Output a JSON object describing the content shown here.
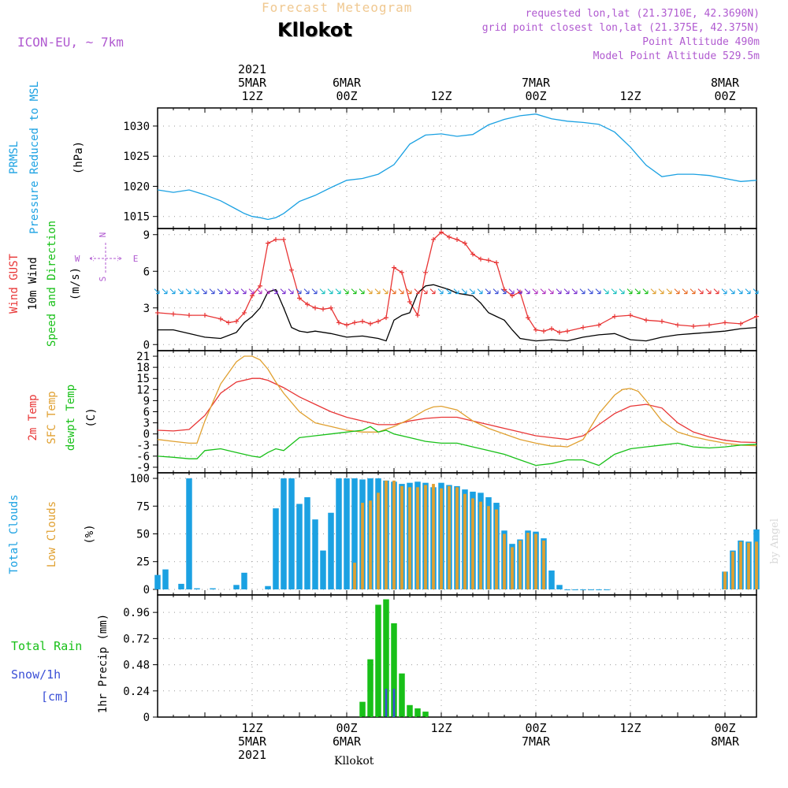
{
  "header": {
    "title": "Forecast Meteogram",
    "station": "Kllokot",
    "model": "ICON-EU, ~ 7km",
    "requested": "requested lon,lat (21.3710E, 42.3690N)",
    "grid_point": "grid point closest lon,lat (21.375E, 42.375N)",
    "point_altitude": "Point Altitude 490m",
    "model_altitude": "Model Point Altitude 529.5m",
    "footer": "Kllokot",
    "signature": "by Angel"
  },
  "time_axis": {
    "top_labels": [
      {
        "t": 12,
        "lines": [
          "2021",
          "5MAR",
          "12Z"
        ]
      },
      {
        "t": 24,
        "lines": [
          "6MAR",
          "00Z"
        ]
      },
      {
        "t": 36,
        "lines": [
          "12Z"
        ]
      },
      {
        "t": 48,
        "lines": [
          "7MAR",
          "00Z"
        ]
      },
      {
        "t": 60,
        "lines": [
          "12Z"
        ]
      },
      {
        "t": 72,
        "lines": [
          "8MAR",
          "00Z"
        ]
      }
    ],
    "bottom_labels": [
      {
        "t": 12,
        "lines": [
          "12Z",
          "5MAR",
          "2021"
        ]
      },
      {
        "t": 24,
        "lines": [
          "00Z",
          "6MAR"
        ]
      },
      {
        "t": 36,
        "lines": [
          "12Z"
        ]
      },
      {
        "t": 48,
        "lines": [
          "00Z",
          "7MAR"
        ]
      },
      {
        "t": 60,
        "lines": [
          "12Z"
        ]
      },
      {
        "t": 72,
        "lines": [
          "00Z",
          "8MAR"
        ]
      }
    ]
  },
  "panel_labels": {
    "pressure": [
      {
        "text": "PRMSL",
        "color": "#1ba1e2"
      },
      {
        "text": "Pressure Reduced to MSL",
        "color": "#1ba1e2"
      },
      {
        "text": "(hPa)",
        "color": "#000000"
      }
    ],
    "wind": [
      {
        "text": "Wind GUST",
        "color": "#e83535"
      },
      {
        "text": "10m Wind",
        "color": "#000000"
      },
      {
        "text": "Speed and Direction",
        "color": "#18c018"
      },
      {
        "text": "(m/s)",
        "color": "#000000"
      }
    ],
    "compass": {
      "north": "N",
      "south": "S",
      "west": "W",
      "east": "E",
      "color": "#b05ad0"
    },
    "temp": [
      {
        "text": "2m Temp",
        "color": "#e83535"
      },
      {
        "text": "SFC Temp",
        "color": "#e0a030"
      },
      {
        "text": "dewpt Temp",
        "color": "#18c018"
      },
      {
        "text": "(C)",
        "color": "#000000"
      }
    ],
    "clouds": [
      {
        "text": "Total Clouds",
        "color": "#1ba1e2"
      },
      {
        "text": "Low Clouds",
        "color": "#e0a030"
      },
      {
        "text": "(%)",
        "color": "#000000"
      }
    ],
    "precip_left": [
      {
        "text": "Total  Rain",
        "color": "#18c018"
      },
      {
        "text": "Snow/1h",
        "color": "#3a4fd6"
      },
      {
        "text": "[cm]",
        "color": "#3a4fd6"
      }
    ],
    "precip_axis": "1hr Precip (mm)"
  },
  "chart_data": [
    {
      "type": "line",
      "name": "pressure",
      "x_unit": "hours from 5MAR 00Z",
      "ylim": [
        1013,
        1033
      ],
      "yticks": [
        1015,
        1020,
        1025,
        1030
      ],
      "series": [
        {
          "name": "PRMSL",
          "color": "#1ba1e2",
          "x": [
            0,
            2,
            4,
            6,
            8,
            10,
            11,
            12,
            13,
            14,
            15,
            16,
            18,
            20,
            22,
            24,
            26,
            28,
            30,
            32,
            34,
            36,
            38,
            40,
            42,
            44,
            46,
            48,
            50,
            52,
            54,
            56,
            58,
            60,
            62,
            64,
            66,
            68,
            70,
            72,
            74,
            76
          ],
          "y": [
            1019.4,
            1019,
            1019.4,
            1018.6,
            1017.6,
            1016.2,
            1015.5,
            1015,
            1014.8,
            1014.5,
            1014.8,
            1015.5,
            1017.5,
            1018.5,
            1019.8,
            1021,
            1021.3,
            1022,
            1023.6,
            1027,
            1028.5,
            1028.7,
            1028.3,
            1028.6,
            1030.2,
            1031.1,
            1031.7,
            1032,
            1031.2,
            1030.8,
            1030.6,
            1030.3,
            1029,
            1026.5,
            1023.5,
            1021.6,
            1022,
            1022,
            1021.8,
            1021.3,
            1020.8,
            1021
          ]
        }
      ]
    },
    {
      "type": "line",
      "name": "wind",
      "x_unit": "hours from 5MAR 00Z",
      "ylim": [
        -0.5,
        9.5
      ],
      "yticks": [
        0,
        3,
        6,
        9
      ],
      "series": [
        {
          "name": "Wind GUST",
          "color": "#e83535",
          "x": [
            0,
            2,
            4,
            6,
            8,
            9,
            10,
            11,
            12,
            13,
            14,
            15,
            16,
            17,
            18,
            19,
            20,
            21,
            22,
            23,
            24,
            25,
            26,
            27,
            28,
            29,
            30,
            31,
            32,
            33,
            34,
            35,
            36,
            37,
            38,
            39,
            40,
            41,
            42,
            43,
            44,
            45,
            46,
            47,
            48,
            49,
            50,
            51,
            52,
            54,
            56,
            58,
            60,
            62,
            64,
            66,
            68,
            70,
            72,
            74,
            76
          ],
          "y": [
            2.6,
            2.5,
            2.4,
            2.4,
            2.1,
            1.8,
            1.9,
            2.6,
            4.0,
            4.8,
            8.3,
            8.6,
            8.6,
            6.1,
            3.8,
            3.3,
            3.0,
            2.9,
            3.0,
            1.8,
            1.6,
            1.8,
            1.9,
            1.7,
            1.9,
            2.2,
            6.3,
            5.9,
            3.5,
            2.4,
            5.9,
            8.6,
            9.2,
            8.8,
            8.6,
            8.3,
            7.4,
            7.0,
            6.9,
            6.7,
            4.5,
            4.0,
            4.3,
            2.2,
            1.2,
            1.1,
            1.3,
            1.0,
            1.1,
            1.4,
            1.6,
            2.3,
            2.4,
            2.0,
            1.9,
            1.6,
            1.5,
            1.6,
            1.8,
            1.7,
            2.3
          ]
        },
        {
          "name": "10m Wind",
          "color": "#000000",
          "x": [
            0,
            2,
            4,
            6,
            8,
            10,
            11,
            12,
            13,
            14,
            15,
            16,
            17,
            18,
            19,
            20,
            22,
            24,
            26,
            28,
            29,
            30,
            31,
            32,
            33,
            34,
            35,
            36,
            37,
            38,
            39,
            40,
            41,
            42,
            43,
            44,
            45,
            46,
            47,
            48,
            50,
            52,
            54,
            56,
            58,
            60,
            62,
            64,
            66,
            68,
            70,
            72,
            74,
            76
          ],
          "y": [
            1.2,
            1.2,
            0.9,
            0.6,
            0.5,
            1.0,
            1.8,
            2.3,
            3.0,
            4.3,
            4.5,
            3.0,
            1.4,
            1.1,
            1.0,
            1.1,
            0.9,
            0.6,
            0.7,
            0.5,
            0.3,
            2.0,
            2.4,
            2.6,
            4.2,
            4.8,
            4.9,
            4.7,
            4.5,
            4.2,
            4.1,
            4.0,
            3.4,
            2.6,
            2.3,
            2.0,
            1.2,
            0.5,
            0.4,
            0.3,
            0.4,
            0.3,
            0.6,
            0.8,
            0.9,
            0.4,
            0.3,
            0.6,
            0.8,
            0.9,
            1.0,
            1.1,
            1.3,
            1.4
          ]
        }
      ],
      "direction_arrows_row": "wind barbs drawn as colored arrows along y=4.3"
    },
    {
      "type": "line",
      "name": "temperature",
      "x_unit": "hours from 5MAR 00Z",
      "ylim": [
        -10.5,
        22.5
      ],
      "yticks": [
        -9,
        -6,
        -3,
        0,
        3,
        6,
        9,
        12,
        15,
        18,
        21
      ],
      "series": [
        {
          "name": "2m Temp",
          "color": "#e83535",
          "x": [
            0,
            2,
            4,
            6,
            8,
            10,
            12,
            13,
            14,
            16,
            18,
            20,
            22,
            24,
            26,
            28,
            30,
            32,
            34,
            36,
            38,
            40,
            42,
            44,
            46,
            48,
            50,
            52,
            54,
            56,
            58,
            60,
            62,
            64,
            66,
            68,
            70,
            72,
            74,
            76
          ],
          "y": [
            1,
            0.8,
            1.2,
            5,
            11,
            14,
            15,
            15,
            14.5,
            12.5,
            10,
            8,
            6,
            4.5,
            3.5,
            2.5,
            2.5,
            3.5,
            4.2,
            4.5,
            4.5,
            3.5,
            2.5,
            1.5,
            0.5,
            -0.5,
            -1,
            -1.5,
            -0.5,
            2.5,
            5.5,
            7.5,
            8,
            7,
            3,
            0.5,
            -0.8,
            -1.7,
            -2.2,
            -2.3
          ]
        },
        {
          "name": "SFC Temp",
          "color": "#e0a030",
          "x": [
            0,
            2,
            4,
            5,
            6,
            8,
            10,
            11,
            12,
            13,
            14,
            15,
            16,
            18,
            20,
            22,
            24,
            26,
            28,
            30,
            32,
            34,
            35,
            36,
            38,
            40,
            42,
            44,
            46,
            48,
            50,
            51,
            52,
            54,
            56,
            58,
            59,
            60,
            61,
            62,
            64,
            66,
            68,
            70,
            72,
            74,
            76
          ],
          "y": [
            -1.5,
            -2,
            -2.5,
            -2.5,
            3.5,
            13.5,
            19.5,
            21,
            21,
            20,
            17.5,
            14,
            11,
            6,
            3,
            2,
            1,
            0.5,
            0.5,
            2,
            4,
            6.5,
            7.3,
            7.5,
            6.5,
            3.5,
            1.5,
            0,
            -1.5,
            -2.5,
            -3.3,
            -3.3,
            -3.5,
            -1.5,
            5.5,
            10.5,
            12,
            12.3,
            11.5,
            9,
            3.5,
            0.5,
            -0.8,
            -1.7,
            -2.5,
            -3,
            -3.2
          ]
        },
        {
          "name": "dewpt Temp",
          "color": "#18c018",
          "x": [
            0,
            2,
            4,
            5,
            6,
            8,
            10,
            12,
            13,
            14,
            15,
            16,
            18,
            20,
            22,
            24,
            26,
            27,
            28,
            29,
            30,
            32,
            34,
            36,
            38,
            40,
            42,
            44,
            46,
            48,
            50,
            52,
            54,
            56,
            58,
            60,
            62,
            64,
            66,
            68,
            70,
            72,
            74,
            76
          ],
          "y": [
            -6,
            -6.3,
            -6.7,
            -6.7,
            -4.5,
            -4,
            -5,
            -6,
            -6.3,
            -5,
            -4,
            -4.5,
            -1,
            -0.5,
            0,
            0.5,
            1,
            2,
            0.5,
            1,
            0,
            -1,
            -2,
            -2.5,
            -2.5,
            -3.5,
            -4.5,
            -5.5,
            -7,
            -8.5,
            -8,
            -7,
            -7,
            -8.5,
            -5.5,
            -4,
            -3.5,
            -3,
            -2.5,
            -3.5,
            -3.8,
            -3.5,
            -3,
            -2.8
          ]
        }
      ]
    },
    {
      "type": "bar",
      "name": "clouds",
      "x_unit": "hours from 5MAR 00Z",
      "ylim": [
        -5,
        105
      ],
      "yticks": [
        0,
        25,
        50,
        75,
        100
      ],
      "series": [
        {
          "name": "Total Clouds",
          "color": "#1ba1e2",
          "x": [
            0,
            1,
            3,
            4,
            5,
            7,
            10,
            11,
            14,
            15,
            16,
            17,
            18,
            19,
            20,
            21,
            22,
            23,
            24,
            25,
            26,
            27,
            28,
            29,
            30,
            31,
            32,
            33,
            34,
            35,
            36,
            37,
            38,
            39,
            40,
            41,
            42,
            43,
            44,
            45,
            46,
            47,
            48,
            49,
            50,
            51,
            52,
            53,
            54,
            55,
            56,
            57,
            72,
            73,
            74,
            75,
            76
          ],
          "y": [
            13,
            18,
            5,
            100,
            1,
            1,
            4,
            15,
            3,
            73,
            100,
            100,
            77,
            83,
            63,
            35,
            69,
            100,
            100,
            100,
            99,
            100,
            100,
            98,
            97,
            95,
            96,
            97,
            96,
            92,
            96,
            94,
            93,
            90,
            88,
            87,
            83,
            78,
            53,
            41,
            45,
            53,
            52,
            46,
            17,
            4,
            0,
            0,
            0,
            0,
            0,
            0,
            16,
            35,
            44,
            43,
            54
          ]
        },
        {
          "name": "Low Clouds",
          "color": "#e0a030",
          "x": [
            25,
            26,
            27,
            28,
            29,
            30,
            31,
            32,
            33,
            34,
            35,
            36,
            37,
            38,
            39,
            40,
            41,
            42,
            43,
            44,
            45,
            46,
            47,
            48,
            49,
            72,
            73,
            74,
            75,
            76
          ],
          "y": [
            24,
            78,
            80,
            87,
            98,
            98,
            93,
            92,
            92,
            94,
            95,
            91,
            93,
            92,
            86,
            82,
            79,
            75,
            72,
            50,
            38,
            44,
            51,
            50,
            44,
            16,
            34,
            43,
            42,
            43
          ]
        }
      ]
    },
    {
      "type": "bar",
      "name": "precip",
      "x_unit": "hours from 5MAR 00Z",
      "ylim": [
        0,
        1.12
      ],
      "yticks": [
        0,
        0.24,
        0.48,
        0.72,
        0.96
      ],
      "ytick_labels": [
        "0",
        "0.24",
        "0.48",
        "0.72",
        "0.96"
      ],
      "series": [
        {
          "name": "Total Rain",
          "color": "#18c018",
          "x": [
            26,
            27,
            28,
            29,
            30,
            31,
            32,
            33,
            34
          ],
          "y": [
            0.14,
            0.53,
            1.03,
            1.08,
            0.86,
            0.4,
            0.11,
            0.08,
            0.05
          ]
        },
        {
          "name": "Snow/1h",
          "color": "#3a4fd6",
          "x": [
            29,
            30
          ],
          "y": [
            0.26,
            0.26
          ]
        }
      ]
    }
  ]
}
